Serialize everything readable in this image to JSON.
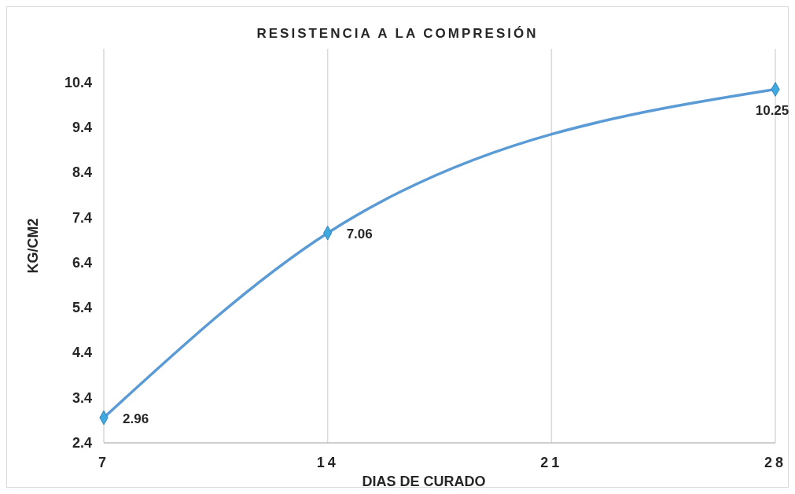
{
  "chart_data": {
    "type": "line",
    "title": "RESISTENCIA A LA COMPRESIÓN",
    "xlabel": "DIAS DE CURADO",
    "ylabel": "KG/CM2",
    "x": [
      7,
      14,
      28
    ],
    "series": [
      {
        "color": "#5b9bd5",
        "values": [
          2.96,
          7.06,
          10.25
        ]
      }
    ],
    "xlim": [
      7,
      28
    ],
    "xticks": [
      7,
      14,
      21,
      28
    ],
    "ylim": [
      2.4,
      11.15
    ],
    "yticks": [
      2.4,
      3.4,
      4.4,
      5.4,
      6.4,
      7.4,
      8.4,
      9.4,
      10.4
    ],
    "grid": "x",
    "marker": "diamond",
    "line_style": "solid",
    "data_labels": true
  }
}
